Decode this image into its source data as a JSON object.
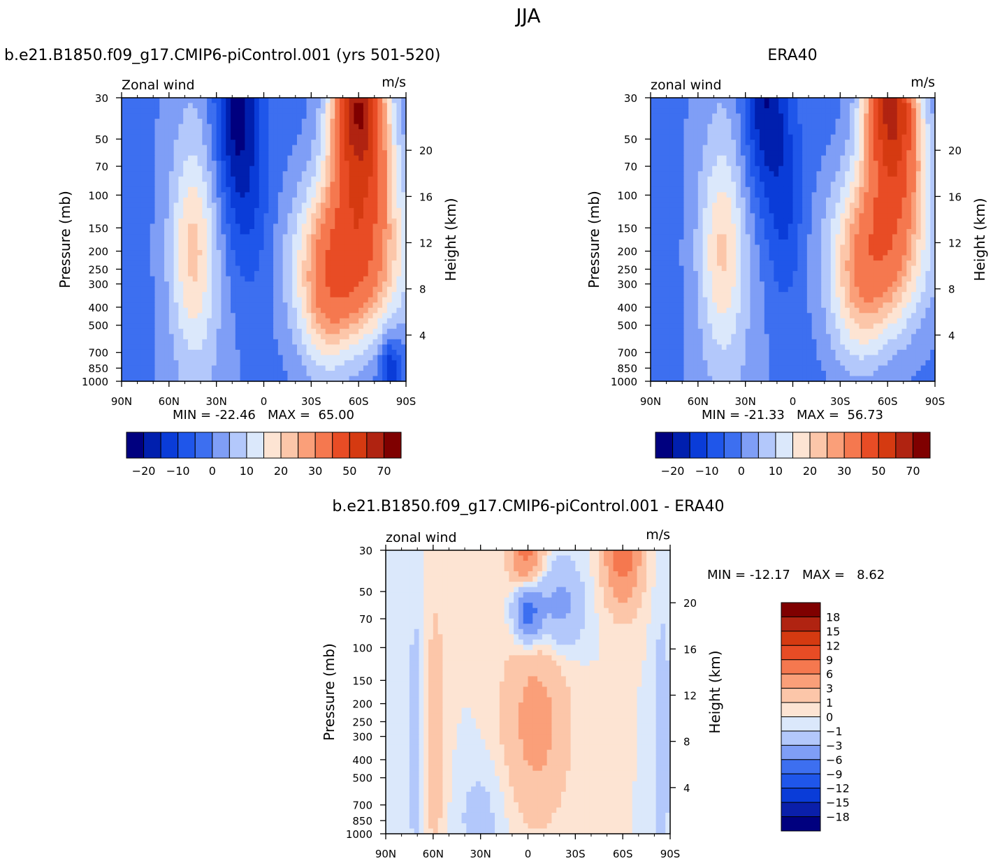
{
  "figure": {
    "title": "JJA"
  },
  "chart_data": [
    {
      "type": "heatmap",
      "panel": "model",
      "title": "b.e21.B1850.f09_g17.CMIP6-piControl.001 (yrs 501-520)",
      "left_label": "Zonal wind",
      "right_label": "m/s",
      "ylabel": "Pressure (mb)",
      "ylabel_right": "Height (km)",
      "x_ticks": [
        "90N",
        "60N",
        "30N",
        "0",
        "30S",
        "60S",
        "90S"
      ],
      "xlim": [
        90,
        -90
      ],
      "y_ticks": [
        30,
        50,
        70,
        100,
        150,
        200,
        250,
        300,
        400,
        500,
        700,
        850,
        1000
      ],
      "ylim": [
        1000,
        30
      ],
      "y_scale": "log",
      "height_ticks": [
        20,
        16,
        12,
        8,
        4
      ],
      "minmax_text": "MIN = -22.46   MAX =  65.00",
      "min": -22.46,
      "max": 65.0,
      "levels": [
        -25,
        -20,
        -15,
        -10,
        -5,
        0,
        5,
        10,
        15,
        20,
        25,
        30,
        40,
        50,
        60,
        70
      ],
      "colorbar_labels": [
        "-20",
        "-10",
        "0",
        "10",
        "20",
        "30",
        "50",
        "70"
      ],
      "colorbar_orientation": "horizontal",
      "features": [
        {
          "lat": -55,
          "p": 220,
          "value": 45,
          "sx": 22,
          "sy": 0.7
        },
        {
          "lat": -60,
          "p": 30,
          "value": 60,
          "sx": 11,
          "sy": 0.5
        },
        {
          "lat": -62,
          "p": 70,
          "value": 35,
          "sx": 14,
          "sy": 0.55
        },
        {
          "lat": -38,
          "p": 450,
          "value": 12,
          "sx": 12,
          "sy": 0.6
        },
        {
          "lat": 45,
          "p": 200,
          "value": 18,
          "sx": 10,
          "sy": 0.85
        },
        {
          "lat": 18,
          "p": 30,
          "value": -22,
          "sx": 10,
          "sy": 0.9
        },
        {
          "lat": 10,
          "p": 120,
          "value": -8,
          "sx": 10,
          "sy": 0.8
        },
        {
          "lat": -80,
          "p": 850,
          "value": -15,
          "sx": 5,
          "sy": 0.3
        }
      ]
    },
    {
      "type": "heatmap",
      "panel": "obs",
      "title": "ERA40",
      "left_label": "zonal wind",
      "right_label": "m/s",
      "ylabel": "Pressure (mb)",
      "ylabel_right": "Height (km)",
      "x_ticks": [
        "90N",
        "60N",
        "30N",
        "0",
        "30S",
        "60S",
        "90S"
      ],
      "xlim": [
        90,
        -90
      ],
      "y_ticks": [
        30,
        50,
        70,
        100,
        150,
        200,
        250,
        300,
        400,
        500,
        700,
        850,
        1000
      ],
      "ylim": [
        1000,
        30
      ],
      "y_scale": "log",
      "height_ticks": [
        20,
        16,
        12,
        8,
        4
      ],
      "minmax_text": "MIN = -21.33   MAX =  56.73",
      "min": -21.33,
      "max": 56.73,
      "levels": [
        -25,
        -20,
        -15,
        -10,
        -5,
        0,
        5,
        10,
        15,
        20,
        25,
        30,
        40,
        50,
        60,
        70
      ],
      "colorbar_labels": [
        "-20",
        "-10",
        "0",
        "10",
        "20",
        "30",
        "50",
        "70"
      ],
      "colorbar_orientation": "horizontal",
      "features": [
        {
          "lat": -55,
          "p": 200,
          "value": 38,
          "sx": 20,
          "sy": 0.7
        },
        {
          "lat": -62,
          "p": 30,
          "value": 55,
          "sx": 11,
          "sy": 0.5
        },
        {
          "lat": -65,
          "p": 70,
          "value": 30,
          "sx": 14,
          "sy": 0.55
        },
        {
          "lat": -40,
          "p": 450,
          "value": 10,
          "sx": 12,
          "sy": 0.6
        },
        {
          "lat": 45,
          "p": 200,
          "value": 17,
          "sx": 10,
          "sy": 0.85
        },
        {
          "lat": 18,
          "p": 30,
          "value": -20,
          "sx": 10,
          "sy": 0.9
        },
        {
          "lat": 5,
          "p": 120,
          "value": -9,
          "sx": 8,
          "sy": 0.8
        }
      ]
    },
    {
      "type": "heatmap",
      "panel": "difference",
      "title": "b.e21.B1850.f09_g17.CMIP6-piControl.001 - ERA40",
      "left_label": "zonal wind",
      "right_label": "m/s",
      "ylabel": "Pressure (mb)",
      "ylabel_right": "Height (km)",
      "x_ticks": [
        "90N",
        "60N",
        "30N",
        "0",
        "30S",
        "60S",
        "90S"
      ],
      "xlim": [
        90,
        -90
      ],
      "y_ticks": [
        30,
        50,
        70,
        100,
        150,
        200,
        250,
        300,
        400,
        500,
        700,
        850,
        1000
      ],
      "ylim": [
        1000,
        30
      ],
      "y_scale": "log",
      "height_ticks": [
        20,
        16,
        12,
        8,
        4
      ],
      "minmax_text": "MIN = -12.17   MAX =   8.62",
      "min": -12.17,
      "max": 8.62,
      "levels": [
        -21,
        -18,
        -15,
        -12,
        -9,
        -6,
        -3,
        -1,
        0,
        1,
        3,
        6,
        9,
        12,
        15,
        18,
        21
      ],
      "colorbar_labels": [
        "18",
        "15",
        "12",
        "9",
        "6",
        "3",
        "1",
        "0",
        "-1",
        "-3",
        "-6",
        "-9",
        "-12",
        "-15",
        "-18"
      ],
      "colorbar_orientation": "vertical",
      "features": [
        {
          "lat": -60,
          "p": 30,
          "value": 8,
          "sx": 8,
          "sy": 0.45
        },
        {
          "lat": 1,
          "p": 30,
          "value": 7,
          "sx": 7,
          "sy": 0.3
        },
        {
          "lat": 0,
          "p": 65,
          "value": -8,
          "sx": 6,
          "sy": 0.25
        },
        {
          "lat": -5,
          "p": 250,
          "value": 4,
          "sx": 14,
          "sy": 0.8
        },
        {
          "lat": 60,
          "p": 300,
          "value": 2,
          "sx": 6,
          "sy": 1.4
        },
        {
          "lat": 70,
          "p": 300,
          "value": -2,
          "sx": 5,
          "sy": 1.4
        },
        {
          "lat": 30,
          "p": 800,
          "value": -1.5,
          "sx": 12,
          "sy": 0.5
        },
        {
          "lat": -85,
          "p": 300,
          "value": -2,
          "sx": 4,
          "sy": 1.2
        },
        {
          "lat": -20,
          "p": 60,
          "value": -4,
          "sx": 10,
          "sy": 0.4
        }
      ]
    }
  ],
  "colors": {
    "abs_fill": [
      "#00007f",
      "#001fae",
      "#0a3cd8",
      "#1f56ea",
      "#3d6ff0",
      "#7f9ef6",
      "#b3c8fb",
      "#dbe8fb",
      "#fde4d3",
      "#fcc6a9",
      "#fa9f79",
      "#f5784f",
      "#e84c25",
      "#d53a11",
      "#b02311",
      "#7f0000"
    ],
    "diff_fill": [
      "#00007f",
      "#0a1faa",
      "#0a3cd8",
      "#1f56ea",
      "#3d6ff0",
      "#7f9ef6",
      "#b3c8fb",
      "#dbe8fb",
      "#fde4d3",
      "#fcc6a9",
      "#fa9f79",
      "#f5784f",
      "#e84c25",
      "#d53a11",
      "#b02311",
      "#7f0000"
    ]
  }
}
